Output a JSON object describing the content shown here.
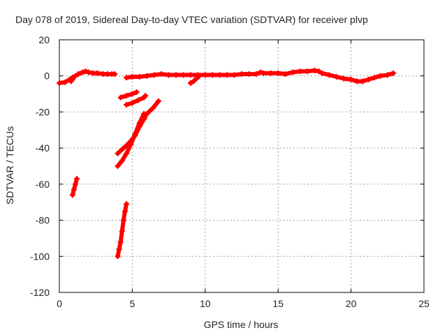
{
  "chart_data": {
    "type": "scatter",
    "title": "Day 078 of 2019, Sidereal Day-to-day VTEC variation (SDTVAR) for receiver plvp",
    "xlabel": "GPS time / hours",
    "ylabel": "SDTVAR / TECUs",
    "xlim": [
      0,
      25
    ],
    "ylim": [
      -120,
      20
    ],
    "xticks": [
      "0",
      "5",
      "10",
      "15",
      "20",
      "25"
    ],
    "yticks": [
      "20",
      "0",
      "-20",
      "-40",
      "-60",
      "-80",
      "-100",
      "-120"
    ],
    "grid": true,
    "legend": "none",
    "marker": "plus",
    "series_color": "#ff0000",
    "series": [
      {
        "segments": [
          [
            [
              0.0,
              -4
            ],
            [
              0.4,
              -3.5
            ],
            [
              0.7,
              -2
            ],
            [
              0.9,
              -1
            ],
            [
              1.1,
              0
            ],
            [
              1.3,
              1
            ],
            [
              1.6,
              2
            ],
            [
              1.8,
              2.5
            ],
            [
              2.0,
              2
            ],
            [
              2.3,
              1.5
            ],
            [
              2.6,
              1.5
            ],
            [
              3.0,
              1
            ],
            [
              3.3,
              1
            ],
            [
              3.6,
              1
            ],
            [
              3.8,
              1
            ]
          ],
          [
            [
              0.8,
              -3
            ],
            [
              0.9,
              -2
            ]
          ],
          [
            [
              4.6,
              -1
            ],
            [
              5.0,
              -0.5
            ],
            [
              5.5,
              -0.5
            ],
            [
              6.0,
              0
            ],
            [
              6.5,
              0.5
            ],
            [
              7.0,
              1
            ],
            [
              7.5,
              0.5
            ],
            [
              8.0,
              0.5
            ],
            [
              8.5,
              0.5
            ],
            [
              9.0,
              0.5
            ],
            [
              9.5,
              0.5
            ],
            [
              10.0,
              0.5
            ],
            [
              10.5,
              0.5
            ],
            [
              11.0,
              0.5
            ],
            [
              11.5,
              0.5
            ],
            [
              12.0,
              0.5
            ],
            [
              12.5,
              1
            ],
            [
              13.0,
              1
            ],
            [
              13.5,
              1
            ],
            [
              13.8,
              2
            ],
            [
              14.0,
              1.5
            ],
            [
              14.5,
              1.5
            ],
            [
              15.0,
              1.5
            ],
            [
              15.5,
              1
            ],
            [
              16.0,
              2
            ],
            [
              16.5,
              2.5
            ],
            [
              17.0,
              2.5
            ],
            [
              17.5,
              3
            ],
            [
              17.8,
              2.5
            ],
            [
              18.0,
              1.5
            ],
            [
              18.5,
              0.5
            ],
            [
              19.0,
              -0.5
            ],
            [
              19.5,
              -1.5
            ],
            [
              20.0,
              -2
            ],
            [
              20.4,
              -3
            ],
            [
              20.8,
              -3
            ],
            [
              21.2,
              -2
            ],
            [
              21.6,
              -1
            ],
            [
              22.0,
              0
            ],
            [
              22.5,
              0.5
            ],
            [
              22.9,
              1.5
            ]
          ],
          [
            [
              9.0,
              -4
            ],
            [
              9.2,
              -3
            ],
            [
              9.4,
              -1.5
            ],
            [
              9.6,
              0
            ]
          ],
          [
            [
              0.9,
              -66
            ],
            [
              1.0,
              -63
            ],
            [
              1.1,
              -60
            ],
            [
              1.2,
              -57
            ]
          ],
          [
            [
              4.2,
              -12
            ],
            [
              4.6,
              -11
            ],
            [
              5.0,
              -10
            ],
            [
              5.3,
              -9
            ]
          ],
          [
            [
              4.6,
              -16
            ],
            [
              5.0,
              -15
            ],
            [
              5.4,
              -13.5
            ],
            [
              5.8,
              -12
            ],
            [
              5.9,
              -11
            ]
          ],
          [
            [
              4.0,
              -43
            ],
            [
              4.4,
              -40
            ],
            [
              4.8,
              -37
            ],
            [
              5.2,
              -33
            ],
            [
              5.5,
              -28
            ],
            [
              5.8,
              -24
            ],
            [
              6.0,
              -21
            ],
            [
              6.4,
              -18
            ],
            [
              6.8,
              -14
            ]
          ],
          [
            [
              4.0,
              -50
            ],
            [
              4.3,
              -47
            ],
            [
              4.6,
              -43
            ],
            [
              4.9,
              -38
            ],
            [
              5.2,
              -32
            ],
            [
              5.5,
              -26
            ],
            [
              5.8,
              -21
            ]
          ],
          [
            [
              4.0,
              -100
            ],
            [
              4.1,
              -96
            ],
            [
              4.2,
              -92
            ],
            [
              4.3,
              -86
            ],
            [
              4.4,
              -80
            ],
            [
              4.5,
              -75
            ],
            [
              4.6,
              -71
            ]
          ]
        ]
      }
    ]
  }
}
